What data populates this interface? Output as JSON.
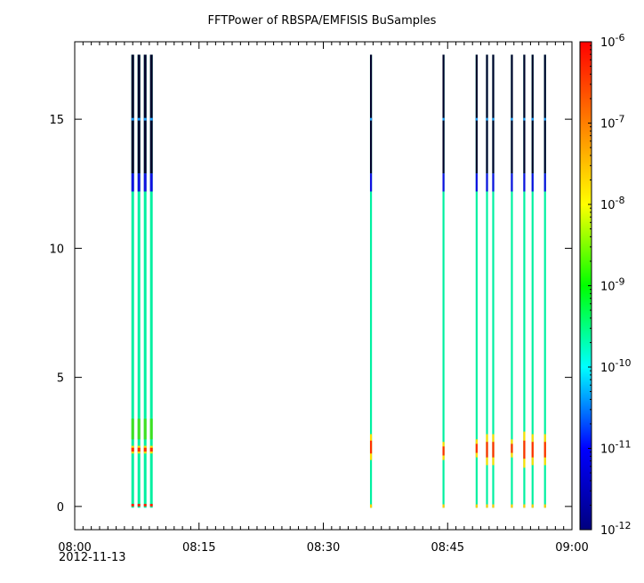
{
  "chart_data": {
    "type": "heatmap",
    "title": "FFTPower of RBSPA/EMFISIS  BuSamples",
    "xlabel": "",
    "ylabel": "",
    "date_label": "2012-11-13",
    "x_range": [
      "08:00",
      "09:00"
    ],
    "x_ticks": [
      "08:00",
      "08:15",
      "08:30",
      "08:45",
      "09:00"
    ],
    "x_tick_minutes": [
      0,
      15,
      30,
      45,
      60
    ],
    "ylim": [
      -0.9,
      18.0
    ],
    "y_ticks": [
      0,
      5,
      10,
      15
    ],
    "colorbar": {
      "scale": "log",
      "range": [
        1e-12,
        1e-06
      ],
      "ticks": [
        {
          "base": "10",
          "exp": "-6"
        },
        {
          "base": "10",
          "exp": "-7"
        },
        {
          "base": "10",
          "exp": "-8"
        },
        {
          "base": "10",
          "exp": "-9"
        },
        {
          "base": "10",
          "exp": "-10"
        },
        {
          "base": "10",
          "exp": "-11"
        },
        {
          "base": "10",
          "exp": "-12"
        }
      ]
    },
    "colormap": [
      "#00007f",
      "#0000ff",
      "#00ffff",
      "#00ff00",
      "#ffff00",
      "#ff7f00",
      "#ff0000"
    ],
    "samples": [
      {
        "time": "08:07:00",
        "wide": true,
        "red_band": [
          0.0,
          0.1
        ],
        "peak_band": [
          2.05,
          2.35
        ],
        "green_band": [
          2.6,
          3.4
        ]
      },
      {
        "time": "08:07:45",
        "wide": true,
        "red_band": [
          0.0,
          0.1
        ],
        "peak_band": [
          2.05,
          2.35
        ],
        "green_band": [
          2.6,
          3.4
        ]
      },
      {
        "time": "08:08:30",
        "wide": true,
        "red_band": [
          0.0,
          0.1
        ],
        "peak_band": [
          2.05,
          2.35
        ],
        "green_band": [
          2.6,
          3.4
        ]
      },
      {
        "time": "08:09:15",
        "wide": true,
        "red_band": [
          0.0,
          0.1
        ],
        "peak_band": [
          2.05,
          2.35
        ],
        "green_band": [
          2.6,
          3.4
        ]
      },
      {
        "time": "08:35:45",
        "wide": false,
        "peak_band": [
          1.8,
          2.8
        ]
      },
      {
        "time": "08:44:30",
        "wide": false,
        "peak_band": [
          1.8,
          2.5
        ]
      },
      {
        "time": "08:48:30",
        "wide": false,
        "peak_band": [
          1.9,
          2.6
        ]
      },
      {
        "time": "08:49:45",
        "wide": false,
        "peak_band": [
          1.6,
          2.8
        ]
      },
      {
        "time": "08:50:30",
        "wide": false,
        "peak_band": [
          1.6,
          2.8
        ]
      },
      {
        "time": "08:52:45",
        "wide": false,
        "peak_band": [
          1.9,
          2.6
        ]
      },
      {
        "time": "08:54:15",
        "wide": false,
        "peak_band": [
          1.5,
          2.9
        ]
      },
      {
        "time": "08:55:15",
        "wide": false,
        "peak_band": [
          1.6,
          2.8
        ]
      },
      {
        "time": "08:56:45",
        "wide": false,
        "peak_band": [
          1.6,
          2.8
        ]
      }
    ],
    "spectrum_profile": {
      "top_black_above": 12.9,
      "blue_band": [
        12.2,
        12.9
      ],
      "cyan_line": 15.0,
      "frequency_top": 17.5
    }
  }
}
